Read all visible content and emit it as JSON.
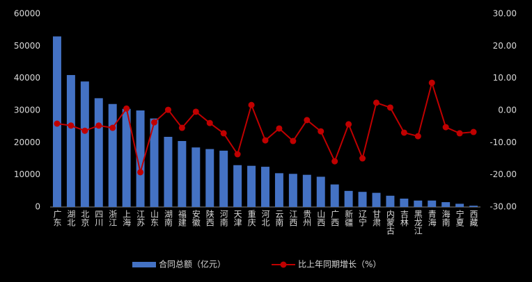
{
  "chart_data": {
    "type": "bar_line",
    "categories": [
      "广东",
      "湖北",
      "北京",
      "四川",
      "浙江",
      "上海",
      "江苏",
      "山东",
      "湖南",
      "福建",
      "安徽",
      "陕西",
      "河南",
      "天津",
      "重庆",
      "河北",
      "云南",
      "江西",
      "贵州",
      "山西",
      "广西",
      "新疆",
      "辽宁",
      "甘肃",
      "内蒙古",
      "吉林",
      "黑龙江",
      "青海",
      "海南",
      "宁夏",
      "西藏"
    ],
    "series": [
      {
        "name": "合同总额（亿元）",
        "type": "bar",
        "color": "#4472c4",
        "values": [
          53000,
          41000,
          39000,
          33800,
          32000,
          30500,
          30000,
          27500,
          21800,
          20500,
          18500,
          18000,
          17500,
          13000,
          12800,
          12500,
          10500,
          10300,
          10000,
          9400,
          7000,
          5000,
          4700,
          4400,
          3500,
          2600,
          2000,
          2000,
          1500,
          1000,
          400
        ]
      },
      {
        "name": "比上年同期增长（%）",
        "type": "line",
        "axis": "y2",
        "color": "#c00000",
        "values": [
          -4.1,
          -4.7,
          -6.3,
          -4.7,
          -5.4,
          0.6,
          -19.2,
          -3.7,
          0.2,
          -5.4,
          -0.4,
          -3.9,
          -7.1,
          -13.6,
          1.7,
          -9.3,
          -5.6,
          -9.5,
          -3.0,
          -6.5,
          -15.8,
          -4.3,
          -14.9,
          2.4,
          0.9,
          -6.9,
          -8.0,
          8.6,
          -5.2,
          -7.1,
          -6.7
        ]
      }
    ],
    "ylim": [
      0,
      60000
    ],
    "yticks": [
      0,
      10000,
      20000,
      30000,
      40000,
      50000,
      60000
    ],
    "y2lim": [
      -30,
      30
    ],
    "y2ticks": [
      {
        "value": -30,
        "label": "-30.00"
      },
      {
        "value": -20,
        "label": "-20.00"
      },
      {
        "value": -10,
        "label": "-10.00"
      },
      {
        "value": 0,
        "label": "0.00"
      },
      {
        "value": 10,
        "label": "10.00"
      },
      {
        "value": 20,
        "label": "20.00"
      },
      {
        "value": 30,
        "label": "30.00"
      }
    ],
    "legend": "bottom"
  }
}
